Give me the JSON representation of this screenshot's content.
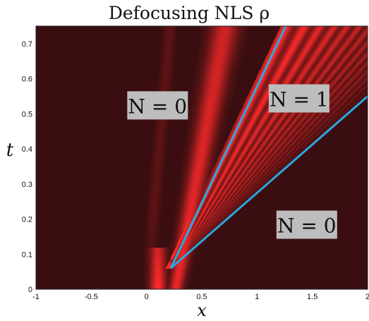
{
  "chart_data": {
    "type": "heatmap",
    "title": "Defocusing NLS ρ",
    "xlabel": "x",
    "ylabel": "t",
    "xlim": [
      -1,
      2
    ],
    "ylim": [
      0,
      0.75
    ],
    "x_ticks": [
      "-1",
      "-0.5",
      "0",
      "0.5",
      "1",
      "1.5",
      "2"
    ],
    "x_tick_values": [
      -1,
      -0.5,
      0,
      0.5,
      1,
      1.5,
      2
    ],
    "y_ticks": [
      "0",
      "0.1",
      "0.2",
      "0.3",
      "0.4",
      "0.5",
      "0.6",
      "0.7"
    ],
    "y_tick_values": [
      0,
      0.1,
      0.2,
      0.3,
      0.4,
      0.5,
      0.6,
      0.7
    ],
    "colors": {
      "background": "#3a0e10",
      "intensity_high": "#ff2a2a",
      "boundary_lines": "#29a9e0",
      "label_box": "#bdbdbd"
    },
    "boundary_lines": [
      {
        "from": [
          0.22,
          0.06
        ],
        "to": [
          1.26,
          0.75
        ]
      },
      {
        "from": [
          0.22,
          0.06
        ],
        "to": [
          2.0,
          0.55
        ]
      }
    ],
    "region_labels": [
      {
        "text": "N = 0",
        "x": 0.1,
        "t": 0.52
      },
      {
        "text": "N = 1",
        "x": 1.38,
        "t": 0.54
      },
      {
        "text": "N = 0",
        "x": 1.45,
        "t": 0.18
      }
    ]
  }
}
